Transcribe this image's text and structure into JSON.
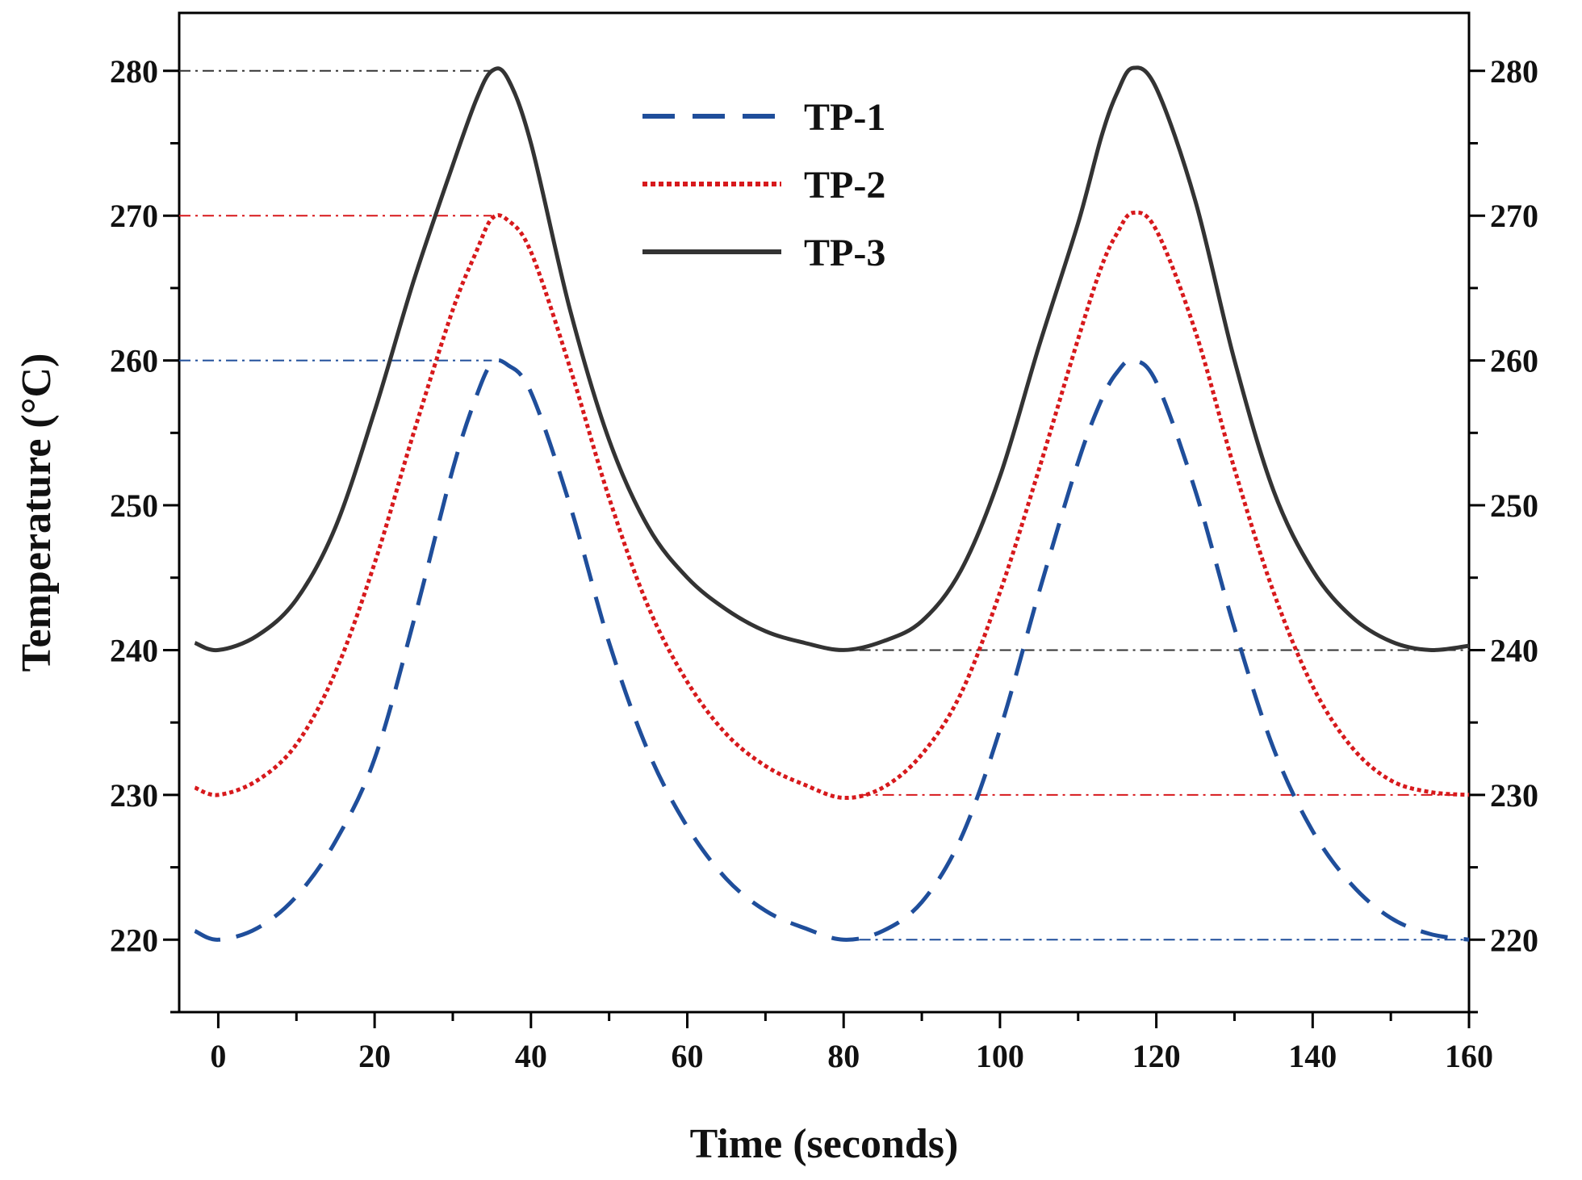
{
  "chart_data": {
    "type": "line",
    "title": "",
    "xlabel": "Time (seconds)",
    "ylabel": "Temperature (°C)",
    "xlim": [
      -5,
      160
    ],
    "ylim": [
      215,
      284
    ],
    "xticks": [
      0,
      20,
      40,
      60,
      80,
      100,
      120,
      140,
      160
    ],
    "xtick_labels": [
      "0",
      "20",
      "40",
      "60",
      "80",
      "100",
      "120",
      "140",
      "160"
    ],
    "yticks": [
      220,
      230,
      240,
      250,
      260,
      270,
      280
    ],
    "ytick_labels": [
      "220",
      "230",
      "240",
      "250",
      "260",
      "270",
      "280"
    ],
    "right_axis_tick_labels": [
      "220",
      "230",
      "240",
      "250",
      "260",
      "270",
      "280"
    ],
    "grid": false,
    "legend_position": "top-center",
    "series": [
      {
        "name": "TP-1",
        "style": "dashed",
        "color": "#1f4e9b",
        "x": [
          -3,
          0,
          5,
          10,
          15,
          20,
          25,
          30,
          33,
          35,
          37,
          40,
          45,
          50,
          55,
          60,
          65,
          70,
          75,
          80,
          85,
          90,
          95,
          100,
          105,
          110,
          113,
          115,
          117,
          120,
          125,
          130,
          135,
          140,
          145,
          150,
          155,
          160
        ],
        "y": [
          220.6,
          220.0,
          220.8,
          223.0,
          226.8,
          232.5,
          242.0,
          252.5,
          257.5,
          259.8,
          259.7,
          257.8,
          250.0,
          240.5,
          233.0,
          227.8,
          224.2,
          222.0,
          220.8,
          220.0,
          220.6,
          222.6,
          227.0,
          234.5,
          244.0,
          253.0,
          257.3,
          259.2,
          260.0,
          258.5,
          251.0,
          241.5,
          233.2,
          227.5,
          223.8,
          221.5,
          220.4,
          220.0
        ]
      },
      {
        "name": "TP-2",
        "style": "dotted",
        "color": "#d7191c",
        "x": [
          -3,
          0,
          5,
          10,
          15,
          20,
          25,
          30,
          33,
          35,
          37,
          40,
          45,
          50,
          55,
          60,
          65,
          70,
          75,
          80,
          85,
          90,
          95,
          100,
          105,
          110,
          113,
          115,
          117,
          120,
          125,
          130,
          135,
          140,
          145,
          150,
          155,
          160
        ],
        "y": [
          230.5,
          230.0,
          231.0,
          233.5,
          238.5,
          246.0,
          255.0,
          263.5,
          267.5,
          269.8,
          269.7,
          267.5,
          259.5,
          250.5,
          243.0,
          237.8,
          234.2,
          232.0,
          230.7,
          229.8,
          230.5,
          232.8,
          237.0,
          244.0,
          252.5,
          261.5,
          266.5,
          268.8,
          270.2,
          269.0,
          262.0,
          252.5,
          244.0,
          237.5,
          233.3,
          231.0,
          230.2,
          230.0
        ]
      },
      {
        "name": "TP-3",
        "style": "solid",
        "color": "#333333",
        "x": [
          -3,
          0,
          5,
          10,
          15,
          20,
          25,
          30,
          33,
          35,
          37,
          40,
          45,
          50,
          55,
          60,
          65,
          70,
          75,
          80,
          85,
          90,
          95,
          100,
          105,
          110,
          113,
          115,
          117,
          120,
          125,
          130,
          135,
          140,
          145,
          150,
          155,
          160
        ],
        "y": [
          240.5,
          240.0,
          241.0,
          243.5,
          248.5,
          256.5,
          265.5,
          273.5,
          278.0,
          280.0,
          279.5,
          275.0,
          263.5,
          254.5,
          248.5,
          245.0,
          242.8,
          241.3,
          240.5,
          240.0,
          240.6,
          242.0,
          245.5,
          252.0,
          261.0,
          269.5,
          275.5,
          278.5,
          280.2,
          278.8,
          271.0,
          260.0,
          251.0,
          245.5,
          242.3,
          240.6,
          240.0,
          240.3
        ]
      }
    ],
    "reference_lines": [
      {
        "series": "TP-1",
        "y": 260,
        "x_start": -5,
        "x_end": 35,
        "style": "dash-dot",
        "color": "#1f4e9b"
      },
      {
        "series": "TP-1",
        "y": 220,
        "x_start": 82,
        "x_end": 160,
        "style": "dash-dot",
        "color": "#1f4e9b"
      },
      {
        "series": "TP-2",
        "y": 270,
        "x_start": -5,
        "x_end": 35,
        "style": "dash-dot",
        "color": "#d7191c"
      },
      {
        "series": "TP-2",
        "y": 230,
        "x_start": 82,
        "x_end": 160,
        "style": "dash-dot",
        "color": "#d7191c"
      },
      {
        "series": "TP-3",
        "y": 280,
        "x_start": -5,
        "x_end": 35,
        "style": "dash-dot",
        "color": "#333333"
      },
      {
        "series": "TP-3",
        "y": 240,
        "x_start": 82,
        "x_end": 160,
        "style": "dash-dot",
        "color": "#333333"
      }
    ]
  }
}
